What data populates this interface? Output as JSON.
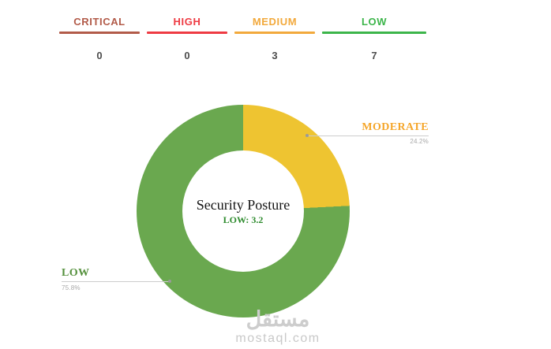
{
  "severity_summary": {
    "items": [
      {
        "label": "CRITICAL",
        "count": "0",
        "color": "#b25b49"
      },
      {
        "label": "HIGH",
        "count": "0",
        "color": "#ee3b43"
      },
      {
        "label": "MEDIUM",
        "count": "3",
        "color": "#f2a93c"
      },
      {
        "label": "LOW",
        "count": "7",
        "color": "#3cb54a"
      }
    ]
  },
  "chart_data": {
    "type": "pie",
    "donut": true,
    "title": "Security Posture",
    "center_score_label": "LOW: 3.2",
    "legend_position": "outside-callouts",
    "series": [
      {
        "name": "MODERATE",
        "value": 24.2,
        "percent_label": "24.2%",
        "color": "#eec431",
        "label_color": "#f5a62a"
      },
      {
        "name": "LOW",
        "value": 75.8,
        "percent_label": "75.8%",
        "color": "#6aa84f",
        "label_color": "#55913d"
      }
    ]
  },
  "watermark": {
    "site_name_arabic": "مستقل",
    "site_domain": "mostaql.com"
  }
}
